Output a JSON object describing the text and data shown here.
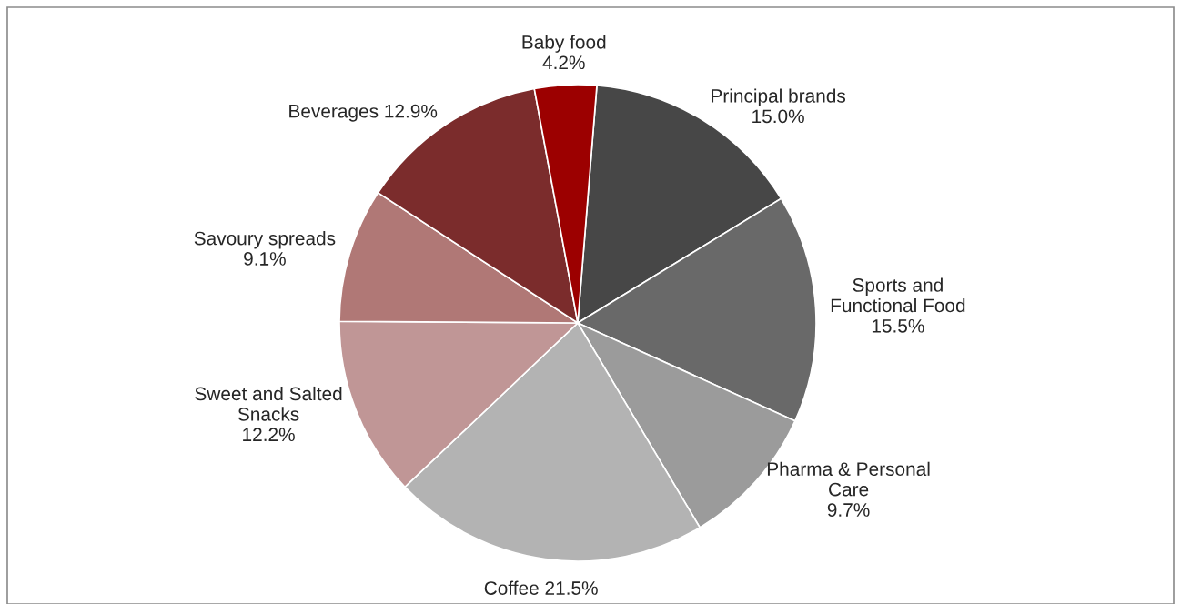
{
  "chart_data": {
    "type": "pie",
    "categories": [
      "Principal brands",
      "Sports and\nFunctional Food",
      "Pharma & Personal\nCare",
      "Coffee",
      "Sweet and Salted\nSnacks",
      "Savoury spreads",
      "Beverages",
      "Baby food"
    ],
    "values": [
      15.0,
      15.5,
      9.7,
      21.5,
      12.2,
      9.1,
      12.9,
      4.2
    ],
    "value_labels": [
      "15.0%",
      "15.5%",
      "9.7%",
      "21.5%",
      "12.2%",
      "9.1%",
      "12.9%",
      "4.2%"
    ],
    "colors": [
      "#474747",
      "#696969",
      "#9b9b9b",
      "#b3b3b3",
      "#c09696",
      "#b07876",
      "#7b2c2c",
      "#9c0000"
    ],
    "legend": false
  }
}
